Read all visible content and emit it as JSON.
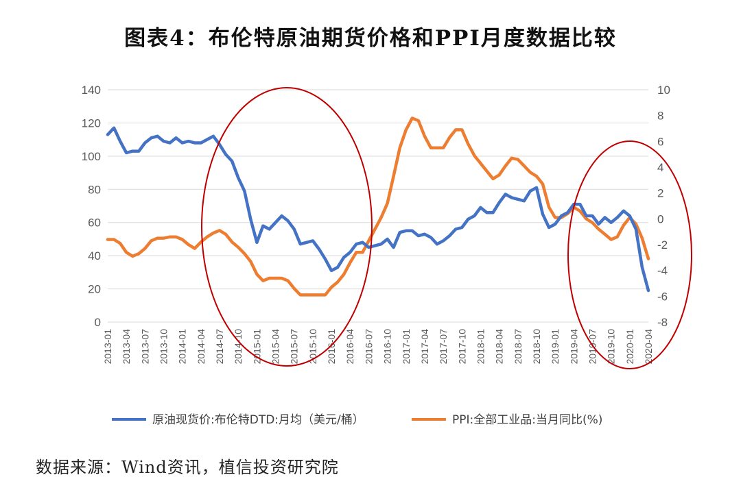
{
  "title": "图表4：布伦特原油期货价格和PPI月度数据比较",
  "source": "数据来源：Wind资讯，植信投资研究院",
  "colors": {
    "oil": "#4472C4",
    "ppi": "#ED7D31",
    "grid": "#D9D9D9",
    "ellipse": "#C00000"
  },
  "chart_data": {
    "type": "line",
    "x_tick_labels": [
      "2013-01",
      "2013-04",
      "2013-07",
      "2013-10",
      "2014-01",
      "2014-04",
      "2014-07",
      "2014-10",
      "2015-01",
      "2015-04",
      "2015-07",
      "2015-10",
      "2016-01",
      "2016-04",
      "2016-07",
      "2016-10",
      "2017-01",
      "2017-04",
      "2017-07",
      "2017-10",
      "2018-01",
      "2018-04",
      "2018-07",
      "2018-10",
      "2019-01",
      "2019-04",
      "2019-07",
      "2019-10",
      "2020-01",
      "2020-04"
    ],
    "x_start": "2013-01",
    "left_axis": {
      "min": 0,
      "max": 140,
      "ticks": [
        0,
        20,
        40,
        60,
        80,
        100,
        120,
        140
      ]
    },
    "right_axis": {
      "min": -8,
      "max": 10,
      "ticks": [
        -8,
        -6,
        -4,
        -2,
        0,
        2,
        4,
        6,
        8,
        10
      ]
    },
    "grid": true,
    "legend_position": "bottom",
    "series": [
      {
        "name": "原油现货价:布伦特DTD:月均（美元/桶）",
        "axis": "left",
        "values": [
          113,
          117,
          109,
          102,
          103,
          103,
          108,
          111,
          112,
          109,
          108,
          111,
          108,
          109,
          108,
          108,
          110,
          112,
          107,
          101,
          97,
          87,
          79,
          62,
          48,
          58,
          56,
          60,
          64,
          61,
          56,
          47,
          48,
          49,
          44,
          38,
          31,
          33,
          39,
          42,
          47,
          48,
          45,
          46,
          47,
          50,
          45,
          54,
          55,
          55,
          52,
          53,
          51,
          47,
          49,
          52,
          56,
          57,
          62,
          64,
          69,
          66,
          66,
          72,
          77,
          75,
          74,
          73,
          79,
          81,
          65,
          57,
          59,
          64,
          66,
          71,
          71,
          64,
          64,
          59,
          63,
          60,
          63,
          67,
          64,
          56,
          33,
          19
        ]
      },
      {
        "name": "PPI:全部工业品:当月同比(%)",
        "axis": "right",
        "values": [
          -1.6,
          -1.6,
          -1.9,
          -2.6,
          -2.9,
          -2.7,
          -2.3,
          -1.7,
          -1.5,
          -1.5,
          -1.4,
          -1.4,
          -1.6,
          -2.0,
          -2.3,
          -1.8,
          -1.4,
          -1.1,
          -0.9,
          -1.2,
          -1.8,
          -2.2,
          -2.7,
          -3.3,
          -4.3,
          -4.8,
          -4.6,
          -4.6,
          -4.6,
          -4.8,
          -5.4,
          -5.9,
          -5.9,
          -5.9,
          -5.9,
          -5.9,
          -5.3,
          -4.9,
          -4.3,
          -3.4,
          -2.6,
          -2.6,
          -1.7,
          -0.8,
          0.1,
          1.2,
          3.3,
          5.5,
          6.9,
          7.8,
          7.6,
          6.4,
          5.5,
          5.5,
          5.5,
          6.3,
          6.9,
          6.9,
          5.8,
          4.9,
          4.3,
          3.7,
          3.1,
          3.4,
          4.1,
          4.7,
          4.6,
          4.1,
          3.6,
          3.3,
          2.7,
          0.9,
          0.1,
          0.1,
          0.4,
          0.9,
          0.6,
          0.0,
          -0.3,
          -0.8,
          -1.2,
          -1.6,
          -1.4,
          -0.5,
          0.1,
          -0.4,
          -1.5,
          -3.1
        ]
      }
    ]
  }
}
